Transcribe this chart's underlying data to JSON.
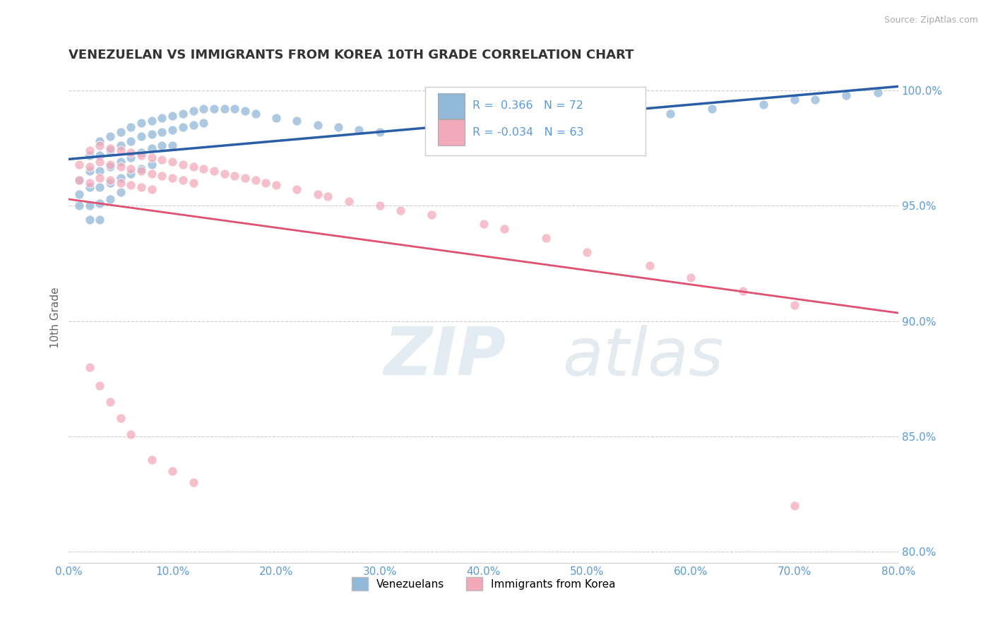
{
  "title": "VENEZUELAN VS IMMIGRANTS FROM KOREA 10TH GRADE CORRELATION CHART",
  "source": "Source: ZipAtlas.com",
  "ylabel": "10th Grade",
  "watermark_zip": "ZIP",
  "watermark_atlas": "atlas",
  "blue_R": 0.366,
  "blue_N": 72,
  "pink_R": -0.034,
  "pink_N": 63,
  "xlim": [
    0.0,
    0.8
  ],
  "ylim": [
    0.795,
    1.008
  ],
  "right_yticks": [
    1.0,
    0.95,
    0.9,
    0.85,
    0.8
  ],
  "right_yticklabels": [
    "100.0%",
    "95.0%",
    "90.0%",
    "85.0%",
    "80.0%"
  ],
  "xticks": [
    0.0,
    0.1,
    0.2,
    0.3,
    0.4,
    0.5,
    0.6,
    0.7,
    0.8
  ],
  "xticklabels": [
    "0.0%",
    "10.0%",
    "20.0%",
    "30.0%",
    "40.0%",
    "50.0%",
    "60.0%",
    "70.0%",
    "80.0%"
  ],
  "grid_color": "#cccccc",
  "title_color": "#333333",
  "axis_color": "#5b9bd5",
  "blue_dot_color": "#92b8d8",
  "pink_dot_color": "#f2aabb",
  "blue_line_color": "#2a5fa8",
  "pink_line_color": "#e05070",
  "blue_scatter_x": [
    0.01,
    0.01,
    0.01,
    0.02,
    0.02,
    0.02,
    0.02,
    0.02,
    0.03,
    0.03,
    0.03,
    0.03,
    0.03,
    0.03,
    0.04,
    0.04,
    0.04,
    0.04,
    0.04,
    0.05,
    0.05,
    0.05,
    0.05,
    0.05,
    0.06,
    0.06,
    0.06,
    0.06,
    0.07,
    0.07,
    0.07,
    0.07,
    0.08,
    0.08,
    0.08,
    0.08,
    0.09,
    0.09,
    0.09,
    0.1,
    0.1,
    0.1,
    0.11,
    0.11,
    0.12,
    0.12,
    0.13,
    0.13,
    0.14,
    0.15,
    0.16,
    0.17,
    0.18,
    0.2,
    0.22,
    0.24,
    0.26,
    0.28,
    0.3,
    0.35,
    0.42,
    0.44,
    0.5,
    0.53,
    0.55,
    0.58,
    0.62,
    0.67,
    0.7,
    0.72,
    0.75,
    0.78
  ],
  "blue_scatter_y": [
    0.961,
    0.955,
    0.95,
    0.972,
    0.965,
    0.958,
    0.95,
    0.944,
    0.978,
    0.972,
    0.965,
    0.958,
    0.951,
    0.944,
    0.98,
    0.974,
    0.967,
    0.96,
    0.953,
    0.982,
    0.976,
    0.969,
    0.962,
    0.956,
    0.984,
    0.978,
    0.971,
    0.964,
    0.986,
    0.98,
    0.973,
    0.966,
    0.987,
    0.981,
    0.975,
    0.968,
    0.988,
    0.982,
    0.976,
    0.989,
    0.983,
    0.976,
    0.99,
    0.984,
    0.991,
    0.985,
    0.992,
    0.986,
    0.992,
    0.992,
    0.992,
    0.991,
    0.99,
    0.988,
    0.987,
    0.985,
    0.984,
    0.983,
    0.982,
    0.98,
    0.982,
    0.979,
    0.978,
    0.988,
    0.985,
    0.99,
    0.992,
    0.994,
    0.996,
    0.996,
    0.998,
    0.999
  ],
  "pink_scatter_x": [
    0.01,
    0.01,
    0.02,
    0.02,
    0.02,
    0.03,
    0.03,
    0.03,
    0.04,
    0.04,
    0.04,
    0.05,
    0.05,
    0.05,
    0.06,
    0.06,
    0.06,
    0.07,
    0.07,
    0.07,
    0.08,
    0.08,
    0.08,
    0.09,
    0.09,
    0.1,
    0.1,
    0.11,
    0.11,
    0.12,
    0.12,
    0.13,
    0.14,
    0.15,
    0.16,
    0.17,
    0.18,
    0.19,
    0.2,
    0.22,
    0.24,
    0.25,
    0.27,
    0.3,
    0.32,
    0.35,
    0.4,
    0.42,
    0.46,
    0.5,
    0.56,
    0.6,
    0.65,
    0.7,
    0.7,
    0.02,
    0.03,
    0.04,
    0.05,
    0.06,
    0.08,
    0.1,
    0.12
  ],
  "pink_scatter_y": [
    0.968,
    0.961,
    0.974,
    0.967,
    0.96,
    0.976,
    0.969,
    0.962,
    0.975,
    0.968,
    0.961,
    0.974,
    0.967,
    0.96,
    0.973,
    0.966,
    0.959,
    0.972,
    0.965,
    0.958,
    0.971,
    0.964,
    0.957,
    0.97,
    0.963,
    0.969,
    0.962,
    0.968,
    0.961,
    0.967,
    0.96,
    0.966,
    0.965,
    0.964,
    0.963,
    0.962,
    0.961,
    0.96,
    0.959,
    0.957,
    0.955,
    0.954,
    0.952,
    0.95,
    0.948,
    0.946,
    0.942,
    0.94,
    0.936,
    0.93,
    0.924,
    0.919,
    0.913,
    0.907,
    0.82,
    0.88,
    0.872,
    0.865,
    0.858,
    0.851,
    0.84,
    0.835,
    0.83
  ]
}
